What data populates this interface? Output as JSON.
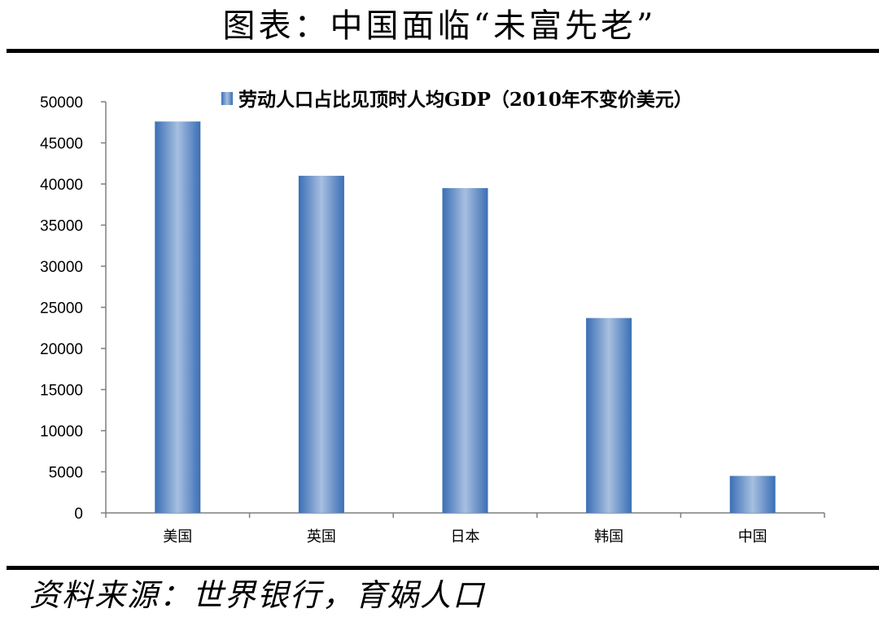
{
  "page": {
    "title": "图表：中国面临“未富先老”",
    "source": "资料来源：世界银行，育娲人口"
  },
  "chart_data": {
    "type": "bar",
    "categories": [
      "美国",
      "英国",
      "日本",
      "韩国",
      "中国"
    ],
    "series": [
      {
        "name": "劳动人口占比见顶时人均GDP（2010年不变价美元）",
        "values": [
          47600,
          41000,
          39500,
          23700,
          4500
        ]
      }
    ],
    "ylim": [
      0,
      50000
    ],
    "yticks": [
      0,
      5000,
      10000,
      15000,
      20000,
      25000,
      30000,
      35000,
      40000,
      45000,
      50000
    ],
    "legend_position": "top",
    "grid": false,
    "colors": {
      "bar_edge": "#3a6fb5",
      "bar_center": "#a7bfe0"
    }
  }
}
